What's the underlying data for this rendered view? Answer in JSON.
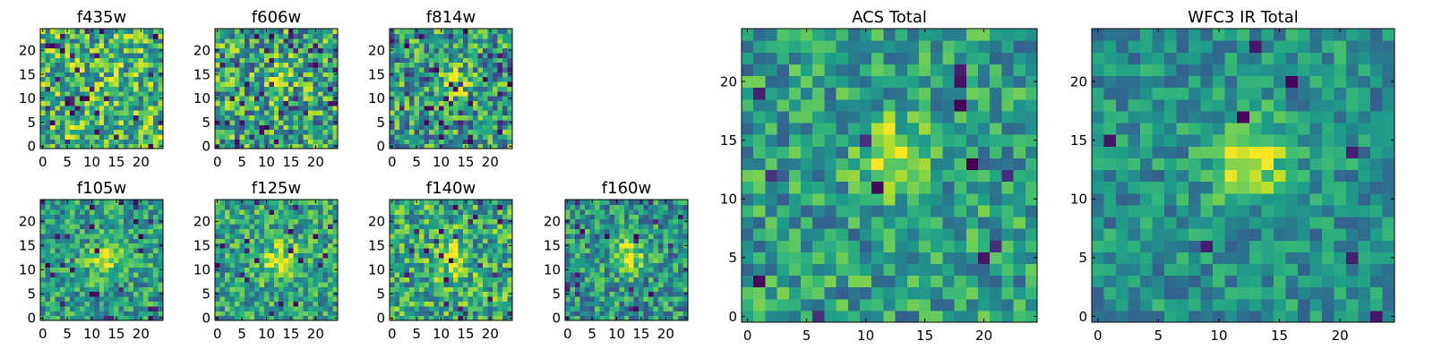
{
  "chart_data": [
    {
      "type": "heatmap",
      "title": "f435w",
      "grid_size": 25,
      "xlim": [
        -0.5,
        24.5
      ],
      "ylim": [
        -0.5,
        24.5
      ],
      "xticks": [
        0,
        5,
        10,
        15,
        20
      ],
      "yticks": [
        0,
        5,
        10,
        15,
        20
      ],
      "xtick_labels": [
        "0",
        "5",
        "10",
        "15",
        "20"
      ],
      "ytick_labels": [
        "0",
        "5",
        "10",
        "15",
        "20"
      ],
      "colormap": "viridis",
      "grid": false,
      "sources": [],
      "noise": 0.34,
      "base": 0.66,
      "dark_pixels": 0.05,
      "seed": 11
    },
    {
      "type": "heatmap",
      "title": "f606w",
      "grid_size": 25,
      "xlim": [
        -0.5,
        24.5
      ],
      "ylim": [
        -0.5,
        24.5
      ],
      "xticks": [
        0,
        5,
        10,
        15,
        20
      ],
      "yticks": [
        0,
        5,
        10,
        15,
        20
      ],
      "xtick_labels": [
        "0",
        "5",
        "10",
        "15",
        "20"
      ],
      "ytick_labels": [
        "0",
        "5",
        "10",
        "15",
        "20"
      ],
      "colormap": "viridis",
      "grid": false,
      "sources": [
        {
          "x": 12.5,
          "y": 13,
          "sigma": 2.2,
          "amplitude": 0.2
        }
      ],
      "noise": 0.36,
      "base": 0.58,
      "dark_pixels": 0.06,
      "seed": 23
    },
    {
      "type": "heatmap",
      "title": "f814w",
      "grid_size": 25,
      "xlim": [
        -0.5,
        24.5
      ],
      "ylim": [
        -0.5,
        24.5
      ],
      "xticks": [
        0,
        5,
        10,
        15,
        20
      ],
      "yticks": [
        0,
        5,
        10,
        15,
        20
      ],
      "xtick_labels": [
        "0",
        "5",
        "10",
        "15",
        "20"
      ],
      "ytick_labels": [
        "0",
        "5",
        "10",
        "15",
        "20"
      ],
      "colormap": "viridis",
      "grid": false,
      "sources": [
        {
          "x": 12.5,
          "y": 13,
          "sigma": 2.0,
          "amplitude": 0.38
        }
      ],
      "noise": 0.34,
      "base": 0.55,
      "dark_pixels": 0.06,
      "seed": 37
    },
    {
      "type": "heatmap",
      "title": "f105w",
      "grid_size": 25,
      "xlim": [
        -0.5,
        24.5
      ],
      "ylim": [
        -0.5,
        24.5
      ],
      "xticks": [
        0,
        5,
        10,
        15,
        20
      ],
      "yticks": [
        0,
        5,
        10,
        15,
        20
      ],
      "xtick_labels": [
        "0",
        "5",
        "10",
        "15",
        "20"
      ],
      "ytick_labels": [
        "0",
        "5",
        "10",
        "15",
        "20"
      ],
      "colormap": "viridis",
      "grid": false,
      "sources": [
        {
          "x": 12.5,
          "y": 12,
          "sigma": 2.3,
          "amplitude": 0.45
        }
      ],
      "noise": 0.26,
      "base": 0.55,
      "dark_pixels": 0.04,
      "seed": 41
    },
    {
      "type": "heatmap",
      "title": "f125w",
      "grid_size": 25,
      "xlim": [
        -0.5,
        24.5
      ],
      "ylim": [
        -0.5,
        24.5
      ],
      "xticks": [
        0,
        5,
        10,
        15,
        20
      ],
      "yticks": [
        0,
        5,
        10,
        15,
        20
      ],
      "xtick_labels": [
        "0",
        "5",
        "10",
        "15",
        "20"
      ],
      "ytick_labels": [
        "0",
        "5",
        "10",
        "15",
        "20"
      ],
      "colormap": "viridis",
      "grid": false,
      "sources": [
        {
          "x": 12.5,
          "y": 12,
          "sigma": 2.6,
          "amplitude": 0.35
        }
      ],
      "noise": 0.26,
      "base": 0.58,
      "dark_pixels": 0.03,
      "seed": 53
    },
    {
      "type": "heatmap",
      "title": "f140w",
      "grid_size": 25,
      "xlim": [
        -0.5,
        24.5
      ],
      "ylim": [
        -0.5,
        24.5
      ],
      "xticks": [
        0,
        5,
        10,
        15,
        20
      ],
      "yticks": [
        0,
        5,
        10,
        15,
        20
      ],
      "xtick_labels": [
        "0",
        "5",
        "10",
        "15",
        "20"
      ],
      "ytick_labels": [
        "0",
        "5",
        "10",
        "15",
        "20"
      ],
      "colormap": "viridis",
      "grid": false,
      "sources": [
        {
          "x": 12.5,
          "y": 12,
          "sigma": 2.6,
          "amplitude": 0.32
        }
      ],
      "noise": 0.3,
      "base": 0.6,
      "dark_pixels": 0.04,
      "seed": 67
    },
    {
      "type": "heatmap",
      "title": "f160w",
      "grid_size": 25,
      "xlim": [
        -0.5,
        24.5
      ],
      "ylim": [
        -0.5,
        24.5
      ],
      "xticks": [
        0,
        5,
        10,
        15,
        20
      ],
      "yticks": [
        0,
        5,
        10,
        15,
        20
      ],
      "xtick_labels": [
        "0",
        "5",
        "10",
        "15",
        "20"
      ],
      "ytick_labels": [
        "0",
        "5",
        "10",
        "15",
        "20"
      ],
      "colormap": "viridis",
      "grid": false,
      "sources": [
        {
          "x": 12.5,
          "y": 13,
          "sigma": 2.4,
          "amplitude": 0.42
        }
      ],
      "noise": 0.27,
      "base": 0.52,
      "dark_pixels": 0.04,
      "seed": 79
    },
    {
      "type": "heatmap",
      "title": "ACS Total",
      "grid_size": 25,
      "xlim": [
        -0.5,
        24.5
      ],
      "ylim": [
        -0.5,
        24.5
      ],
      "xticks": [
        0,
        5,
        10,
        15,
        20
      ],
      "yticks": [
        0,
        5,
        10,
        15,
        20
      ],
      "xtick_labels": [
        "0",
        "5",
        "10",
        "15",
        "20"
      ],
      "ytick_labels": [
        "0",
        "5",
        "10",
        "15",
        "20"
      ],
      "colormap": "viridis",
      "grid": false,
      "sources": [
        {
          "x": 12.5,
          "y": 13.5,
          "sigma": 2.2,
          "amplitude": 0.4
        }
      ],
      "noise": 0.25,
      "base": 0.55,
      "dark_pixels": 0.025,
      "seed": 97
    },
    {
      "type": "heatmap",
      "title": "WFC3 IR Total",
      "grid_size": 25,
      "xlim": [
        -0.5,
        24.5
      ],
      "ylim": [
        -0.5,
        24.5
      ],
      "xticks": [
        0,
        5,
        10,
        15,
        20
      ],
      "yticks": [
        0,
        5,
        10,
        15,
        20
      ],
      "xtick_labels": [
        "0",
        "5",
        "10",
        "15",
        "20"
      ],
      "ytick_labels": [
        "0",
        "5",
        "10",
        "15",
        "20"
      ],
      "colormap": "viridis",
      "grid": false,
      "sources": [
        {
          "x": 12.5,
          "y": 13.5,
          "sigma": 2.3,
          "amplitude": 0.48
        }
      ],
      "noise": 0.2,
      "base": 0.5,
      "dark_pixels": 0.015,
      "seed": 131
    }
  ]
}
